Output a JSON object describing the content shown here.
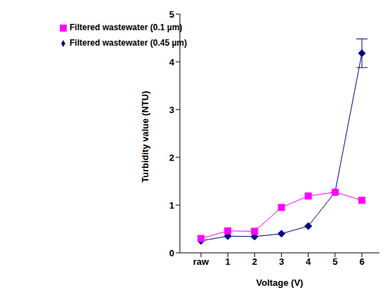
{
  "chart_data": {
    "type": "line",
    "x_label": "Voltage (V)",
    "y_label": "Turbidity value (NTU)",
    "categories": [
      "raw",
      "1",
      "2",
      "3",
      "4",
      "5",
      "6"
    ],
    "ylim": [
      0,
      5
    ],
    "yticks": [
      0,
      1,
      2,
      3,
      4,
      5
    ],
    "grid": false,
    "legend": "top-left",
    "series": [
      {
        "name": "Filtered wastewater (0.45 µm)",
        "color": "#000080",
        "marker": "diamond",
        "line_style": "solid",
        "values": [
          0.25,
          0.35,
          0.34,
          0.4,
          0.56,
          1.27,
          4.18
        ],
        "errors": [
          null,
          null,
          null,
          null,
          null,
          null,
          0.3
        ]
      },
      {
        "name": "Filtered wastewater (0.1 µm)",
        "color": "#ff00ff",
        "marker": "square",
        "line_style": "solid",
        "values": [
          0.3,
          0.46,
          0.45,
          0.95,
          1.19,
          1.27,
          1.1
        ]
      }
    ]
  }
}
